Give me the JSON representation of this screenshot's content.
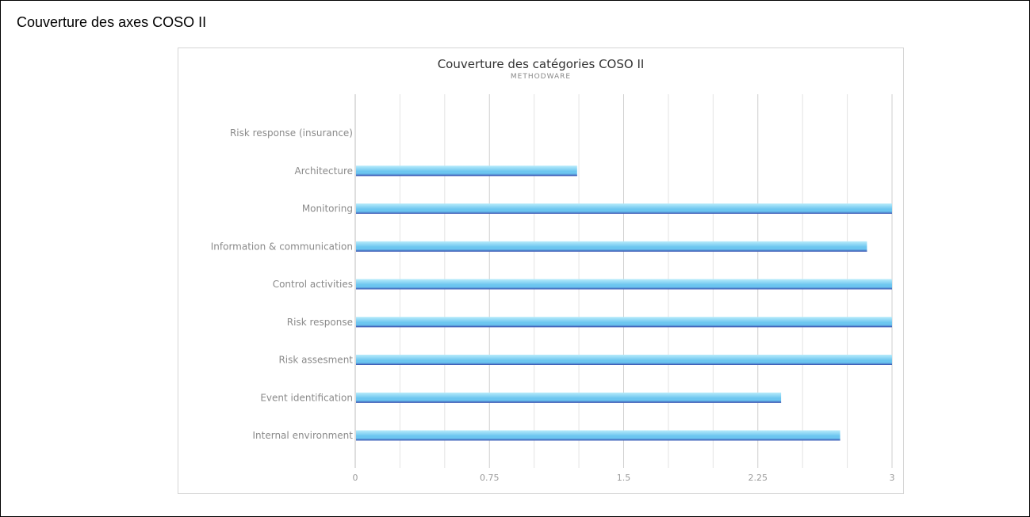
{
  "page": {
    "title": "Couverture des axes COSO II"
  },
  "chart_data": {
    "type": "bar",
    "orientation": "horizontal",
    "title": "Couverture des catégories COSO II",
    "subtitle": "METHODWARE",
    "categories": [
      "Risk response (insurance)",
      "Architecture",
      "Monitoring",
      "Information & communication",
      "Control activities",
      "Risk response",
      "Risk assesment",
      "Event identification",
      "Internal environment"
    ],
    "values": [
      0,
      1.24,
      3,
      2.86,
      3,
      3,
      3,
      2.38,
      2.71
    ],
    "xlim": [
      0,
      3
    ],
    "xticks": [
      "0",
      "0.75",
      "1.5",
      "2.25",
      "3"
    ],
    "grid": true,
    "legend": "none",
    "colors": {
      "bar_top": "#b8ecfb",
      "bar_mid": "#6cc6f0",
      "bar_bottom": "#3f5fb8",
      "grid": "#e3e3e3",
      "grid_major": "#cfcfcf",
      "axis": "#bdbdbd"
    }
  }
}
